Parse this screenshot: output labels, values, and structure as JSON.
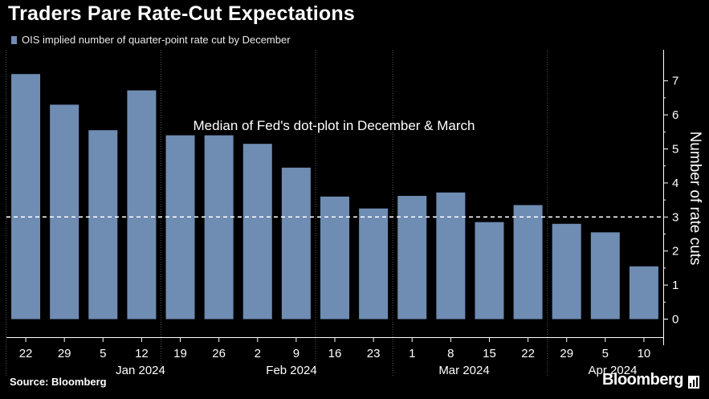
{
  "title": "Traders Pare Rate-Cut Expectations",
  "source": "Source: Bloomberg",
  "brand": "Bloomberg",
  "brand_icon": "bar-chart-icon",
  "colors": {
    "bar": "#6f8cb3",
    "background": "#000000",
    "text": "#ffffff",
    "grid": "#555555"
  },
  "chart_data": {
    "type": "bar",
    "title": "",
    "legend": [
      "OIS implied number of quarter-point rate cut by December"
    ],
    "legend_position": "top-left",
    "categories": [
      "22",
      "29",
      "5",
      "12",
      "19",
      "26",
      "2",
      "9",
      "16",
      "23",
      "1",
      "8",
      "15",
      "22",
      "29",
      "5",
      "10"
    ],
    "month_labels": [
      "Jan 2024",
      "Feb 2024",
      "Mar 2024",
      "Apr 2024"
    ],
    "series": [
      {
        "name": "OIS implied number of quarter-point rate cut by December",
        "values": [
          7.2,
          6.3,
          5.55,
          6.72,
          5.4,
          5.4,
          5.15,
          4.45,
          3.6,
          3.25,
          3.62,
          3.72,
          2.85,
          3.35,
          2.8,
          2.55,
          1.55
        ]
      }
    ],
    "reference_line": {
      "value": 3,
      "label": "Median of Fed's dot-plot in December & March",
      "style": "dashed"
    },
    "ylabel": "Number of rate cuts",
    "y_axis_position": "right",
    "ylim": [
      0,
      7.9
    ],
    "yticks": [
      0,
      1,
      2,
      3,
      4,
      5,
      6,
      7
    ],
    "grid": "vertical dotted"
  }
}
